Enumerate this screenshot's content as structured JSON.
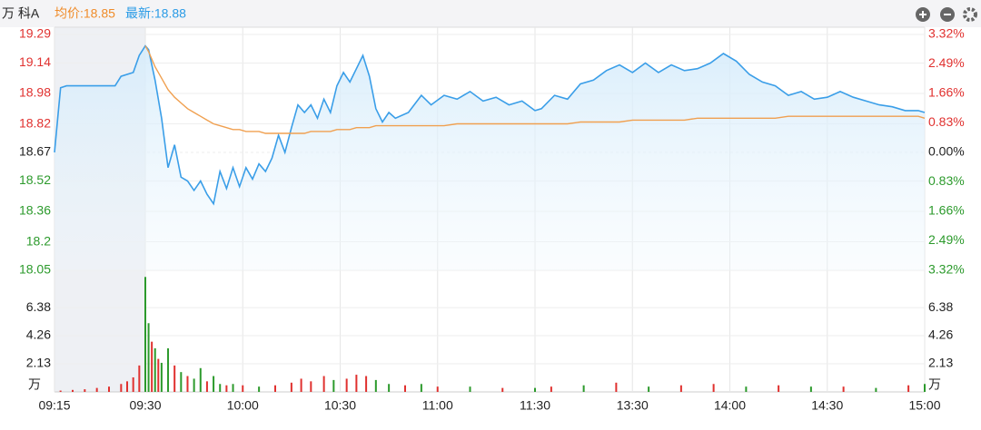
{
  "chart_data": [
    {
      "type": "line",
      "title": "万 科A",
      "annotations": [
        "均价:18.85",
        "最新:18.88"
      ],
      "x": [
        "09:15",
        "09:16",
        "09:17",
        "09:20",
        "09:25",
        "09:26",
        "09:28",
        "09:29",
        "09:30",
        "09:31",
        "09:33",
        "09:35",
        "09:37",
        "09:39",
        "09:41",
        "09:43",
        "09:45",
        "09:47",
        "09:49",
        "09:51",
        "09:53",
        "09:55",
        "09:57",
        "09:59",
        "10:01",
        "10:03",
        "10:05",
        "10:07",
        "10:09",
        "10:11",
        "10:13",
        "10:15",
        "10:17",
        "10:19",
        "10:21",
        "10:23",
        "10:25",
        "10:27",
        "10:29",
        "10:31",
        "10:33",
        "10:35",
        "10:37",
        "10:39",
        "10:41",
        "10:43",
        "10:45",
        "10:47",
        "10:51",
        "10:55",
        "10:58",
        "11:02",
        "11:06",
        "11:10",
        "11:14",
        "11:18",
        "11:22",
        "11:26",
        "11:30",
        "13:02",
        "13:06",
        "13:10",
        "13:14",
        "13:18",
        "13:22",
        "13:26",
        "13:30",
        "13:34",
        "13:38",
        "13:42",
        "13:46",
        "13:50",
        "13:54",
        "13:58",
        "14:02",
        "14:06",
        "14:10",
        "14:14",
        "14:18",
        "14:22",
        "14:26",
        "14:30",
        "14:34",
        "14:38",
        "14:42",
        "14:46",
        "14:50",
        "14:54",
        "14:58",
        "15:00"
      ],
      "series": [
        {
          "color": "#3a9ee8",
          "values": [
            18.67,
            19.01,
            19.02,
            19.02,
            19.02,
            19.07,
            19.09,
            19.18,
            19.23,
            19.21,
            19.05,
            18.85,
            18.59,
            18.71,
            18.54,
            18.52,
            18.47,
            18.52,
            18.45,
            18.4,
            18.57,
            18.48,
            18.59,
            18.49,
            18.59,
            18.53,
            18.61,
            18.57,
            18.64,
            18.76,
            18.67,
            18.8,
            18.92,
            18.88,
            18.92,
            18.85,
            18.95,
            18.88,
            19.02,
            19.09,
            19.04,
            19.11,
            19.18,
            19.07,
            18.9,
            18.83,
            18.88,
            18.85,
            18.88,
            18.97,
            18.92,
            18.97,
            18.95,
            18.99,
            18.94,
            18.96,
            18.92,
            18.94,
            18.89,
            18.9,
            18.97,
            18.95,
            19.03,
            19.05,
            19.1,
            19.13,
            19.09,
            19.14,
            19.09,
            19.13,
            19.1,
            19.11,
            19.14,
            19.19,
            19.15,
            19.08,
            19.04,
            19.02,
            18.97,
            18.99,
            18.95,
            18.96,
            18.99,
            18.96,
            18.94,
            18.92,
            18.91,
            18.89,
            18.89,
            18.88
          ]
        },
        {
          "color": "#f0a050",
          "values": [
            null,
            null,
            null,
            null,
            null,
            null,
            null,
            null,
            19.23,
            19.2,
            19.12,
            19.06,
            19.0,
            18.96,
            18.93,
            18.9,
            18.88,
            18.86,
            18.84,
            18.82,
            18.81,
            18.8,
            18.79,
            18.79,
            18.78,
            18.78,
            18.78,
            18.77,
            18.77,
            18.77,
            18.77,
            18.77,
            18.77,
            18.77,
            18.78,
            18.78,
            18.78,
            18.78,
            18.79,
            18.79,
            18.79,
            18.8,
            18.8,
            18.8,
            18.81,
            18.81,
            18.81,
            18.81,
            18.81,
            18.81,
            18.81,
            18.81,
            18.82,
            18.82,
            18.82,
            18.82,
            18.82,
            18.82,
            18.82,
            18.82,
            18.82,
            18.82,
            18.83,
            18.83,
            18.83,
            18.83,
            18.84,
            18.84,
            18.84,
            18.84,
            18.84,
            18.85,
            18.85,
            18.85,
            18.85,
            18.85,
            18.85,
            18.85,
            18.86,
            18.86,
            18.86,
            18.86,
            18.86,
            18.86,
            18.86,
            18.86,
            18.86,
            18.86,
            18.86,
            18.85
          ]
        }
      ],
      "ylim": [
        18.05,
        19.29
      ],
      "yticks": [
        19.29,
        19.14,
        18.98,
        18.82,
        18.67,
        18.52,
        18.36,
        18.2,
        18.05
      ],
      "y2lim": [
        -3.32,
        3.32
      ],
      "y2ticks": [
        {
          "value": 3.32,
          "label": "3.32%"
        },
        {
          "value": 2.49,
          "label": "2.49%"
        },
        {
          "value": 1.66,
          "label": "1.66%"
        },
        {
          "value": 0.83,
          "label": "0.83%"
        },
        {
          "value": 0,
          "label": "0.00%"
        },
        {
          "value": -0.83,
          "label": "0.83%"
        },
        {
          "value": -1.66,
          "label": "1.66%"
        },
        {
          "value": -2.49,
          "label": "2.49%"
        },
        {
          "value": -3.32,
          "label": "3.32%"
        }
      ],
      "xticks": [
        "09:15",
        "09:30",
        "10:00",
        "10:30",
        "11:00",
        "11:30",
        "13:30",
        "14:00",
        "14:30",
        "15:00"
      ],
      "grid": true
    },
    {
      "type": "bar",
      "unit": "万",
      "x": [
        "09:16",
        "09:18",
        "09:20",
        "09:22",
        "09:24",
        "09:26",
        "09:27",
        "09:28",
        "09:29",
        "09:30",
        "09:31",
        "09:32",
        "09:33",
        "09:34",
        "09:35",
        "09:37",
        "09:39",
        "09:41",
        "09:43",
        "09:45",
        "09:47",
        "09:49",
        "09:51",
        "09:53",
        "09:55",
        "09:57",
        "10:00",
        "10:05",
        "10:10",
        "10:15",
        "10:18",
        "10:21",
        "10:25",
        "10:28",
        "10:32",
        "10:35",
        "10:38",
        "10:41",
        "10:45",
        "10:50",
        "10:55",
        "11:00",
        "11:10",
        "11:20",
        "11:30",
        "13:05",
        "13:15",
        "13:25",
        "13:35",
        "13:45",
        "13:55",
        "14:05",
        "14:15",
        "14:25",
        "14:35",
        "14:45",
        "14:55",
        "15:00"
      ],
      "values": [
        0.1,
        0.15,
        0.2,
        0.3,
        0.4,
        0.6,
        0.8,
        1.1,
        2.0,
        8.7,
        5.2,
        3.8,
        3.3,
        2.5,
        2.2,
        3.3,
        2.0,
        1.5,
        1.2,
        1.0,
        1.8,
        0.8,
        1.2,
        0.6,
        0.5,
        0.6,
        0.5,
        0.4,
        0.5,
        0.7,
        1.0,
        0.8,
        1.2,
        0.9,
        1.0,
        1.3,
        1.2,
        0.9,
        0.6,
        0.5,
        0.6,
        0.4,
        0.4,
        0.3,
        0.3,
        0.4,
        0.5,
        0.7,
        0.4,
        0.5,
        0.6,
        0.4,
        0.5,
        0.4,
        0.4,
        0.3,
        0.5,
        0.6
      ],
      "colors": [
        "#e0312f",
        "#e0312f",
        "#e0312f",
        "#e0312f",
        "#e0312f",
        "#e0312f",
        "#e0312f",
        "#e0312f",
        "#e0312f",
        "#2c9a2c",
        "#2c9a2c",
        "#e0312f",
        "#2c9a2c",
        "#e0312f",
        "#2c9a2c",
        "#2c9a2c",
        "#e0312f",
        "#2c9a2c",
        "#e0312f",
        "#2c9a2c",
        "#2c9a2c",
        "#e0312f",
        "#2c9a2c",
        "#2c9a2c",
        "#e0312f",
        "#2c9a2c",
        "#e0312f",
        "#2c9a2c",
        "#e0312f",
        "#e0312f",
        "#e0312f",
        "#e0312f",
        "#e0312f",
        "#2c9a2c",
        "#e0312f",
        "#e0312f",
        "#e0312f",
        "#2c9a2c",
        "#2c9a2c",
        "#e0312f",
        "#2c9a2c",
        "#e0312f",
        "#2c9a2c",
        "#e0312f",
        "#2c9a2c",
        "#e0312f",
        "#2c9a2c",
        "#e0312f",
        "#2c9a2c",
        "#e0312f",
        "#e0312f",
        "#2c9a2c",
        "#e0312f",
        "#2c9a2c",
        "#e0312f",
        "#2c9a2c",
        "#e0312f",
        "#2c9a2c"
      ],
      "ylim": [
        0,
        9.2
      ],
      "yticks": [
        2.13,
        4.26,
        6.38
      ]
    }
  ]
}
